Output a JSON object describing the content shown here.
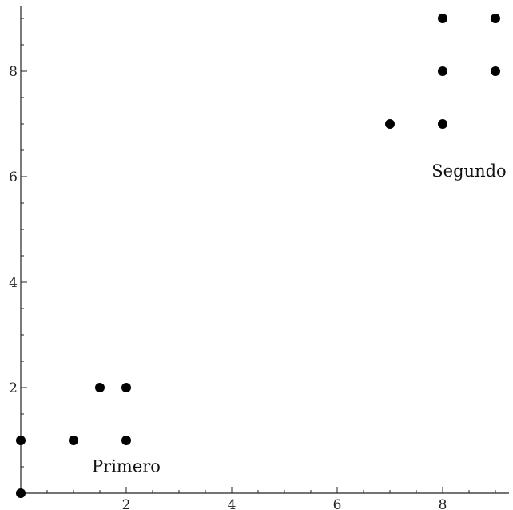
{
  "chart_data": {
    "type": "scatter",
    "title": "",
    "xlabel": "",
    "ylabel": "",
    "xlim": [
      0,
      9.1
    ],
    "ylim": [
      0,
      9.2
    ],
    "x_ticks": [
      2,
      4,
      6,
      8
    ],
    "y_ticks": [
      2,
      4,
      6,
      8
    ],
    "x_tick_labels": [
      "2",
      "4",
      "6",
      "8"
    ],
    "y_tick_labels": [
      "2",
      "4",
      "6",
      "8"
    ],
    "grid": false,
    "point_color": "#000000",
    "points": [
      {
        "x": 0,
        "y": 0
      },
      {
        "x": 0,
        "y": 1
      },
      {
        "x": 1,
        "y": 1
      },
      {
        "x": 2,
        "y": 1
      },
      {
        "x": 1.5,
        "y": 2
      },
      {
        "x": 2,
        "y": 2
      },
      {
        "x": 7,
        "y": 7
      },
      {
        "x": 8,
        "y": 7
      },
      {
        "x": 8,
        "y": 8
      },
      {
        "x": 9,
        "y": 8
      },
      {
        "x": 8,
        "y": 9
      },
      {
        "x": 9,
        "y": 9
      }
    ],
    "annotations": [
      {
        "text": "Primero",
        "x": 2,
        "y": 0.4
      },
      {
        "text": "Segundo",
        "x": 8.5,
        "y": 6
      }
    ]
  }
}
